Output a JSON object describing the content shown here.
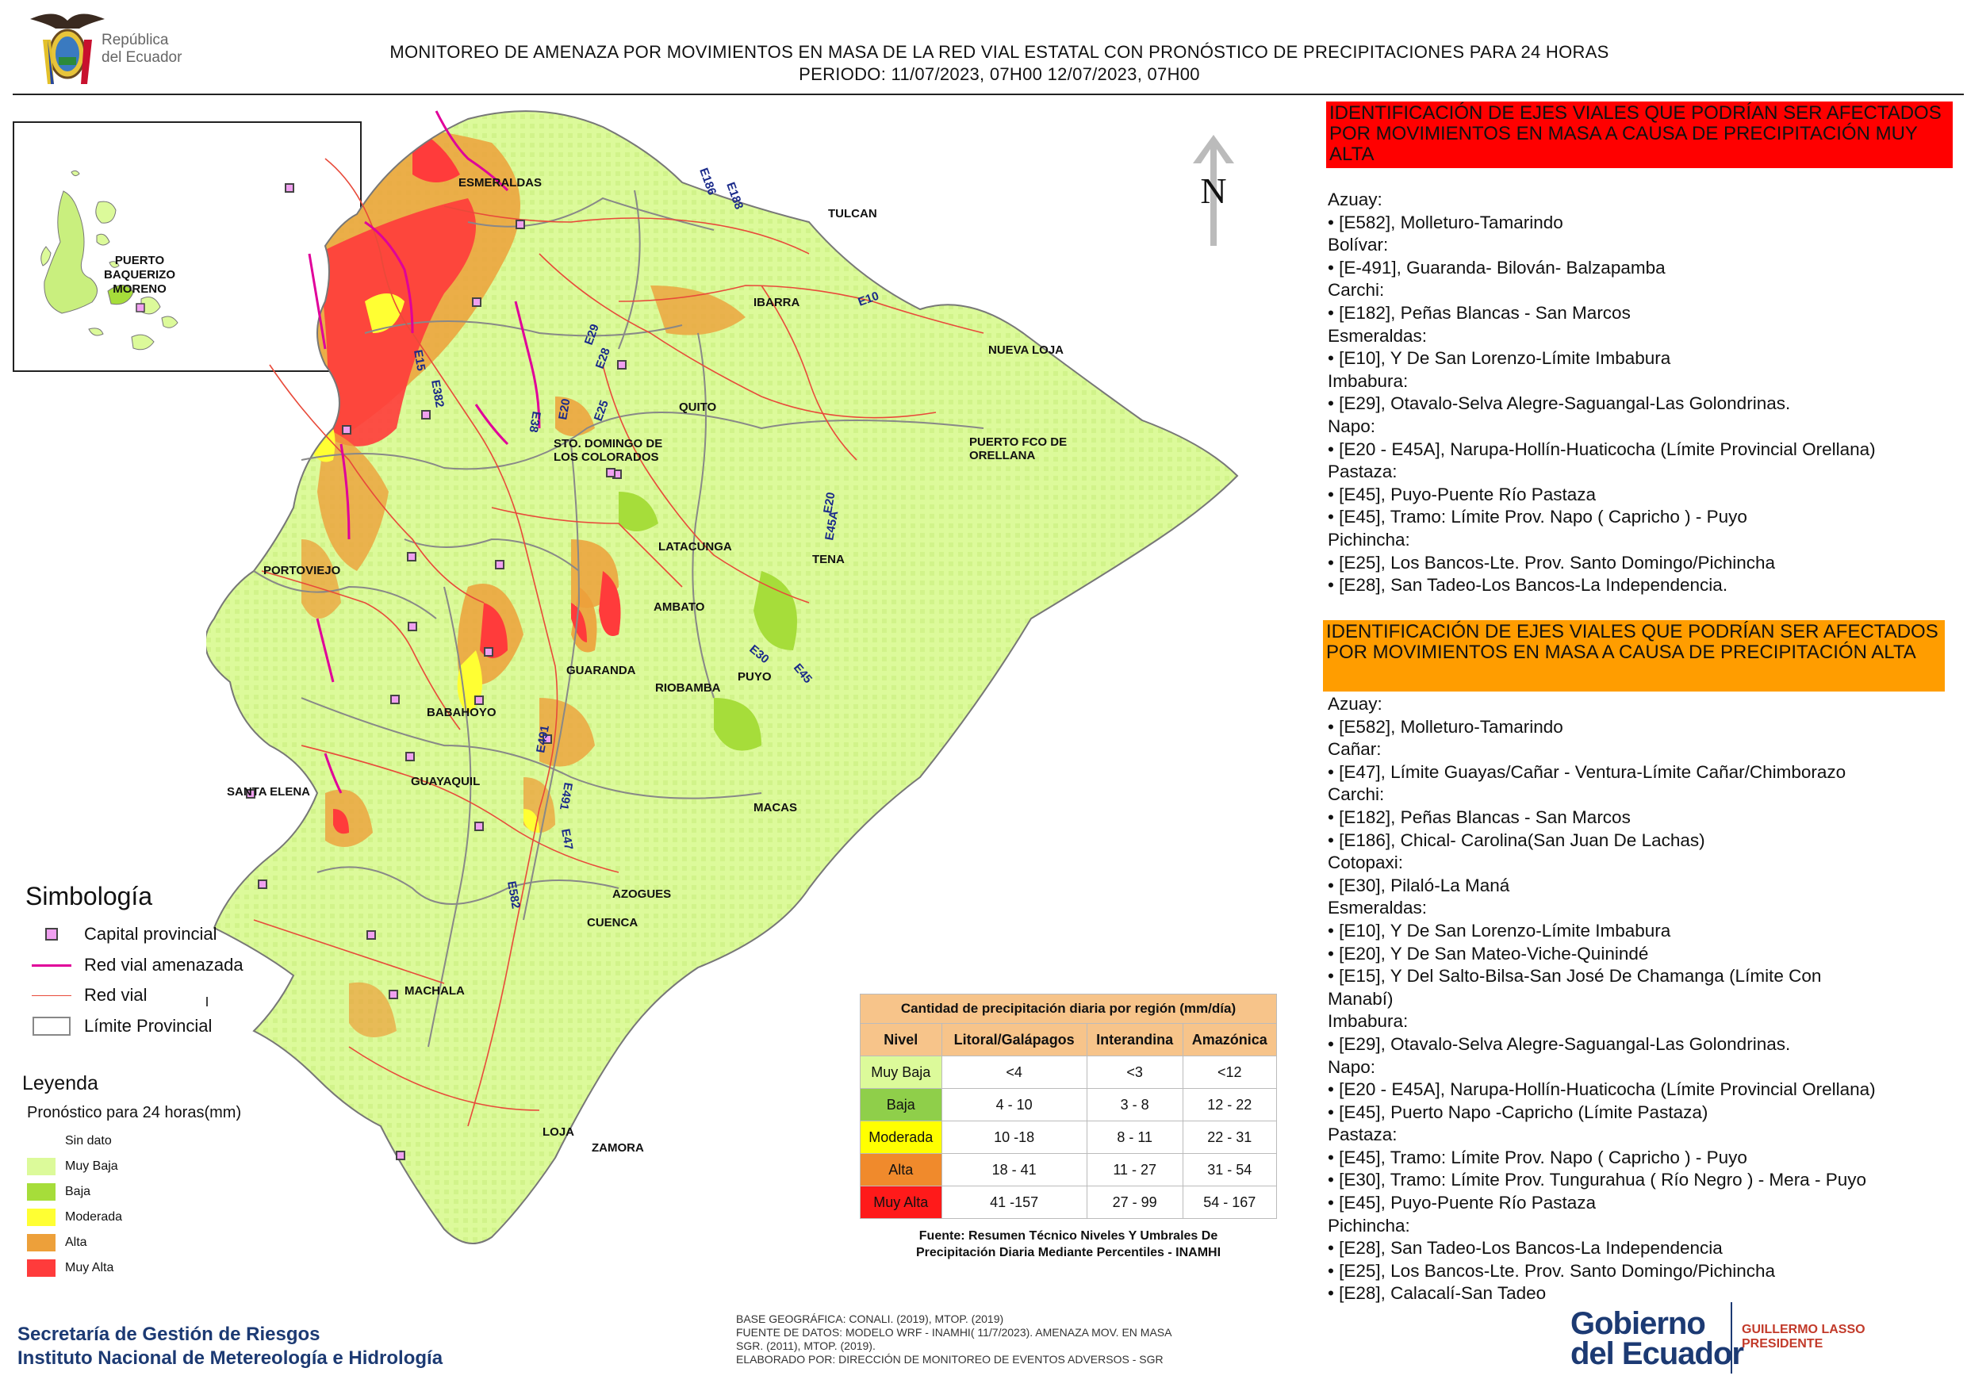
{
  "header": {
    "country_logo_text_1": "República",
    "country_logo_text_2": "del Ecuador",
    "title_line_1": "MONITOREO DE AMENAZA POR MOVIMIENTOS EN MASA DE LA RED VIAL  ESTATAL  CON PRONÓSTICO  DE  PRECIPITACIONES PARA 24 HORAS",
    "title_line_2": "PERIODO: 11/07/2023, 07H00 12/07/2023, 07H00"
  },
  "inset": {
    "label_1": "PUERTO",
    "label_2": "BAQUERIZO",
    "label_3": "MORENO"
  },
  "map": {
    "north_label": "N",
    "places": [
      "ESMERALDAS",
      "TULCAN",
      "IBARRA",
      "NUEVA LOJA",
      "QUITO",
      "STO. DOMINGO DE",
      "LOS COLORADOS",
      "PUERTO FCO DE",
      "ORELLANA",
      "PORTOVIEJO",
      "LATACUNGA",
      "TENA",
      "AMBATO",
      "GUARANDA",
      "RIOBAMBA",
      "PUYO",
      "BABAHOYO",
      "GUAYAQUIL",
      "SANTA ELENA",
      "MACAS",
      "AZOGUES",
      "CUENCA",
      "MACHALA",
      "LOJA",
      "ZAMORA"
    ],
    "roads": [
      "E186",
      "E188",
      "E10",
      "E29",
      "E28",
      "E25",
      "E15",
      "E382",
      "E38",
      "E20",
      "E20",
      "E45A",
      "E30",
      "E45",
      "E491",
      "E491",
      "E47",
      "E582"
    ]
  },
  "colors": {
    "muy_baja": "#dcfa9a",
    "baja": "#a6dd3a",
    "moderada": "#ffff33",
    "alta": "#eda03a",
    "muy_alta": "#ff3b3b",
    "threatened_road": "#e0009a",
    "road": "#e84a3a",
    "border": "#888888",
    "panel1": "#ff0000",
    "panel2": "#ff9d00"
  },
  "simbologia": {
    "title": "Simbología",
    "items": [
      "Capital provincial",
      "Red vial amenazada",
      "Red vial",
      "Límite Provincial"
    ]
  },
  "leyenda": {
    "title": "Leyenda",
    "subtitle": "Pronóstico para 24 horas(mm)",
    "items": [
      "Sin dato",
      "Muy Baja",
      "Baja",
      "Moderada",
      "Alta",
      "Muy Alta"
    ]
  },
  "precip_table": {
    "caption": "Cantidad de precipitación diaria por región (mm/día)",
    "headers": [
      "Nivel",
      "Litoral/Galápagos",
      "Interandina",
      "Amazónica"
    ],
    "rows": [
      [
        "Muy Baja",
        "<4",
        "<3",
        "<12"
      ],
      [
        "Baja",
        "4 - 10",
        "3 - 8",
        "12 - 22"
      ],
      [
        "Moderada",
        "10 -18",
        "8 - 11",
        "22 - 31"
      ],
      [
        "Alta",
        "18 - 41",
        "11 - 27",
        "31 - 54"
      ],
      [
        "Muy Alta",
        "41 -157",
        "27 - 99",
        "54 - 167"
      ]
    ],
    "source_1": "Fuente: Resumen Técnico Niveles Y Umbrales De",
    "source_2": "Precipitación Diaria Mediante Percentiles - INAMHI"
  },
  "panel_muy_alta": {
    "heading": "IDENTIFICACIÓN DE EJES VIALES QUE PODRÍAN SER AFECTADOS POR MOVIMIENTOS EN MASA A CAUSA DE PRECIPITACIÓN MUY ALTA",
    "lines": [
      "Azuay:",
      "• [E582], Molleturo-Tamarindo",
      "Bolívar:",
      "• [E-491], Guaranda- Bilován- Balzapamba",
      "Carchi:",
      "• [E182], Peñas Blancas - San Marcos",
      "Esmeraldas:",
      "• [E10], Y De San Lorenzo-Límite Imbabura",
      "Imbabura:",
      "• [E29], Otavalo-Selva Alegre-Saguangal-Las Golondrinas.",
      "Napo:",
      "• [E20 - E45A], Narupa-Hollín-Huaticocha (Límite Provincial Orellana)",
      "Pastaza:",
      "• [E45], Puyo-Puente Río Pastaza",
      "• [E45], Tramo: Límite Prov. Napo ( Capricho ) - Puyo",
      "Pichincha:",
      "• [E25], Los Bancos-Lte. Prov. Santo Domingo/Pichincha",
      "• [E28], San Tadeo-Los Bancos-La Independencia."
    ]
  },
  "panel_alta": {
    "heading": "IDENTIFICACIÓN DE EJES VIALES QUE PODRÍAN SER AFECTADOS POR MOVIMIENTOS EN MASA A CAUSA DE PRECIPITACIÓN  ALTA",
    "lines": [
      "Azuay:",
      "• [E582], Molleturo-Tamarindo",
      "Cañar:",
      "• [E47], Límite Guayas/Cañar - Ventura-Límite Cañar/Chimborazo",
      "Carchi:",
      "• [E182], Peñas Blancas - San Marcos",
      "• [E186], Chical- Carolina(San Juan De Lachas)",
      "Cotopaxi:",
      "• [E30], Pilaló-La Maná",
      "Esmeraldas:",
      "• [E10], Y De San Lorenzo-Límite Imbabura",
      "• [E20], Y De San Mateo-Viche-Quinindé",
      "• [E15], Y Del Salto-Bilsa-San José De Chamanga (Límite Con",
      "Manabí)",
      "Imbabura:",
      "• [E29], Otavalo-Selva Alegre-Saguangal-Las Golondrinas.",
      "Napo:",
      "• [E20 - E45A], Narupa-Hollín-Huaticocha (Límite Provincial Orellana)",
      "• [E45], Puerto Napo -Capricho (Límite Pastaza)",
      "Pastaza:",
      "• [E45], Tramo: Límite Prov. Napo ( Capricho ) - Puyo",
      "• [E30], Tramo: Límite Prov. Tungurahua ( Río Negro ) - Mera - Puyo",
      "• [E45], Puyo-Puente Río Pastaza",
      "Pichincha:",
      "• [E28], San Tadeo-Los Bancos-La Independencia",
      "• [E25], Los Bancos-Lte. Prov. Santo Domingo/Pichincha",
      "• [E28], Calacalí-San Tadeo"
    ]
  },
  "footer": {
    "agency_1": "Secretaría de Gestión de Riesgos",
    "agency_2": "Instituto Nacional de Metereología e Hidrología",
    "credits": [
      "BASE GEOGRÁFICA: CONALI. (2019), MTOP. (2019)",
      "FUENTE DE DATOS: MODELO WRF - INAMHI( 11/7/2023).  AMENAZA MOV. EN MASA",
      "SGR. (2011), MTOP. (2019).",
      "ELABORADO POR: DIRECCIÓN DE MONITOREO DE EVENTOS ADVERSOS - SGR"
    ],
    "gov_1": "Gobierno",
    "gov_2": "del Ecuador",
    "person_1": "GUILLERMO LASSO",
    "person_2": "PRESIDENTE"
  }
}
